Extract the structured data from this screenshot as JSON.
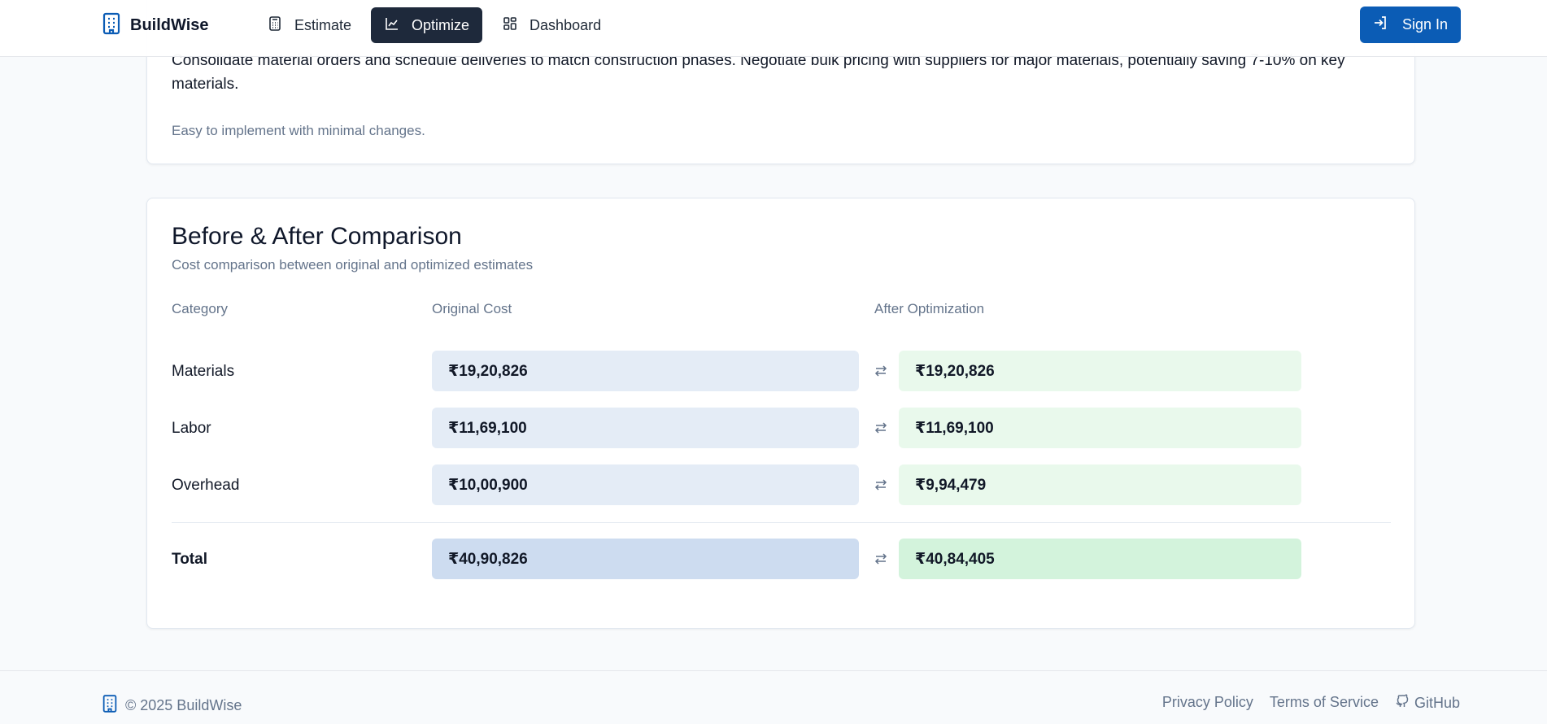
{
  "header": {
    "brand": "BuildWise",
    "nav": [
      {
        "label": "Estimate",
        "icon": "calculator-icon"
      },
      {
        "label": "Optimize",
        "icon": "chart-line-icon",
        "active": true
      },
      {
        "label": "Dashboard",
        "icon": "dashboard-grid-icon"
      }
    ],
    "signin_label": "Sign In"
  },
  "tip": {
    "text": "Consolidate material orders and schedule deliveries to match construction phases. Negotiate bulk pricing with suppliers for major materials, potentially saving 7-10% on key materials.",
    "note": "Easy to implement with minimal changes."
  },
  "comparison": {
    "title": "Before & After Comparison",
    "subtitle": "Cost comparison between original and optimized estimates",
    "columns": [
      "Category",
      "Original Cost",
      "After Optimization"
    ],
    "rows": [
      {
        "category": "Materials",
        "original": "₹19,20,826",
        "optimized": "₹19,20,826"
      },
      {
        "category": "Labor",
        "original": "₹11,69,100",
        "optimized": "₹11,69,100"
      },
      {
        "category": "Overhead",
        "original": "₹10,00,900",
        "optimized": "₹9,94,479"
      }
    ],
    "total": {
      "category": "Total",
      "original": "₹40,90,826",
      "optimized": "₹40,84,405"
    }
  },
  "footer": {
    "copyright": "© 2025 BuildWise",
    "links": [
      "Privacy Policy",
      "Terms of Service",
      "GitHub"
    ]
  },
  "colors": {
    "accent": "#0b5cb5",
    "nav_active": "#1e293b",
    "orig_box": "#e4ecf6",
    "opt_box": "#e9f9ec"
  }
}
